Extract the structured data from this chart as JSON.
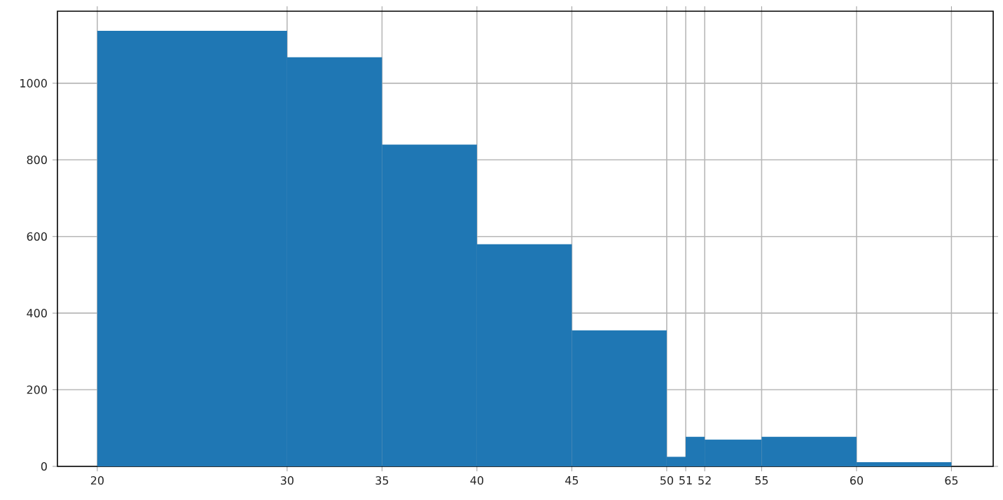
{
  "chart_data": {
    "type": "histogram",
    "bins": [
      20,
      30,
      35,
      40,
      45,
      50,
      51,
      52,
      55,
      60,
      65
    ],
    "values": [
      1137,
      1068,
      840,
      580,
      355,
      25,
      77,
      70,
      77,
      11
    ],
    "color": "#1f77b4",
    "xlim": [
      17.9,
      67.2
    ],
    "ylim": [
      0,
      1188
    ],
    "xticks": [
      20,
      30,
      35,
      40,
      45,
      50,
      51,
      52,
      55,
      60,
      65
    ],
    "yticks": [
      0,
      200,
      400,
      600,
      800,
      1000
    ],
    "grid": true
  }
}
